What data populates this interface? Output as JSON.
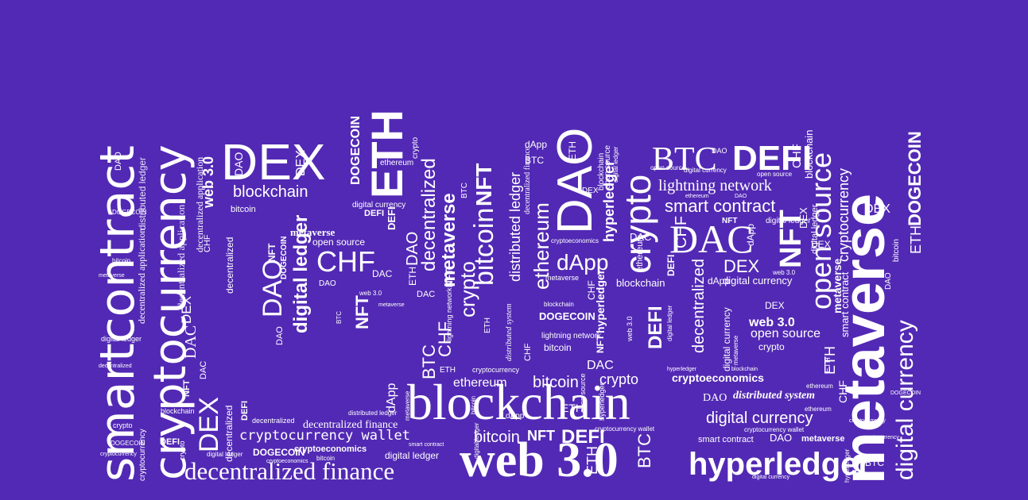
{
  "image": {
    "description_words": "word-cloud artwork",
    "colors": {
      "background": "#5229b4",
      "text": "#ffffff"
    }
  },
  "words": {
    "smartcontract": "smartcontract",
    "cryptocurrency": "cryptocurrency",
    "dex": "DEX",
    "eth": "ETH",
    "dao": "DAO",
    "btc": "BTC",
    "defi": "DEFI",
    "metaverse": "metaverse",
    "dogecoin": "DOGECOIN",
    "blockchain": "blockchain",
    "web3": "web 3.0",
    "hyperledger": "hyperledger",
    "decentralized_finance": "decentralized finance",
    "digital_currency": "digital currency",
    "digital_ledger": "digital ledger",
    "distributed_ledger": "distributed ledger",
    "decentralized": "decentralized",
    "decentralized_application": "decentralized application",
    "bitcoin": "bitcoin",
    "nft": "NFT",
    "crypto": "crypto",
    "ethereum": "ethereum",
    "chf": "CHF",
    "dac": "DAC",
    "dapp": "dApp",
    "open_source": "open source",
    "smart_contract": "smart contract",
    "lightning_network": "lightning network",
    "cryptoeconomics": "cryptoeconomics",
    "distributed_system": "distributed system",
    "cryptocurrency_wallet": "cryptocurrency wallet"
  }
}
